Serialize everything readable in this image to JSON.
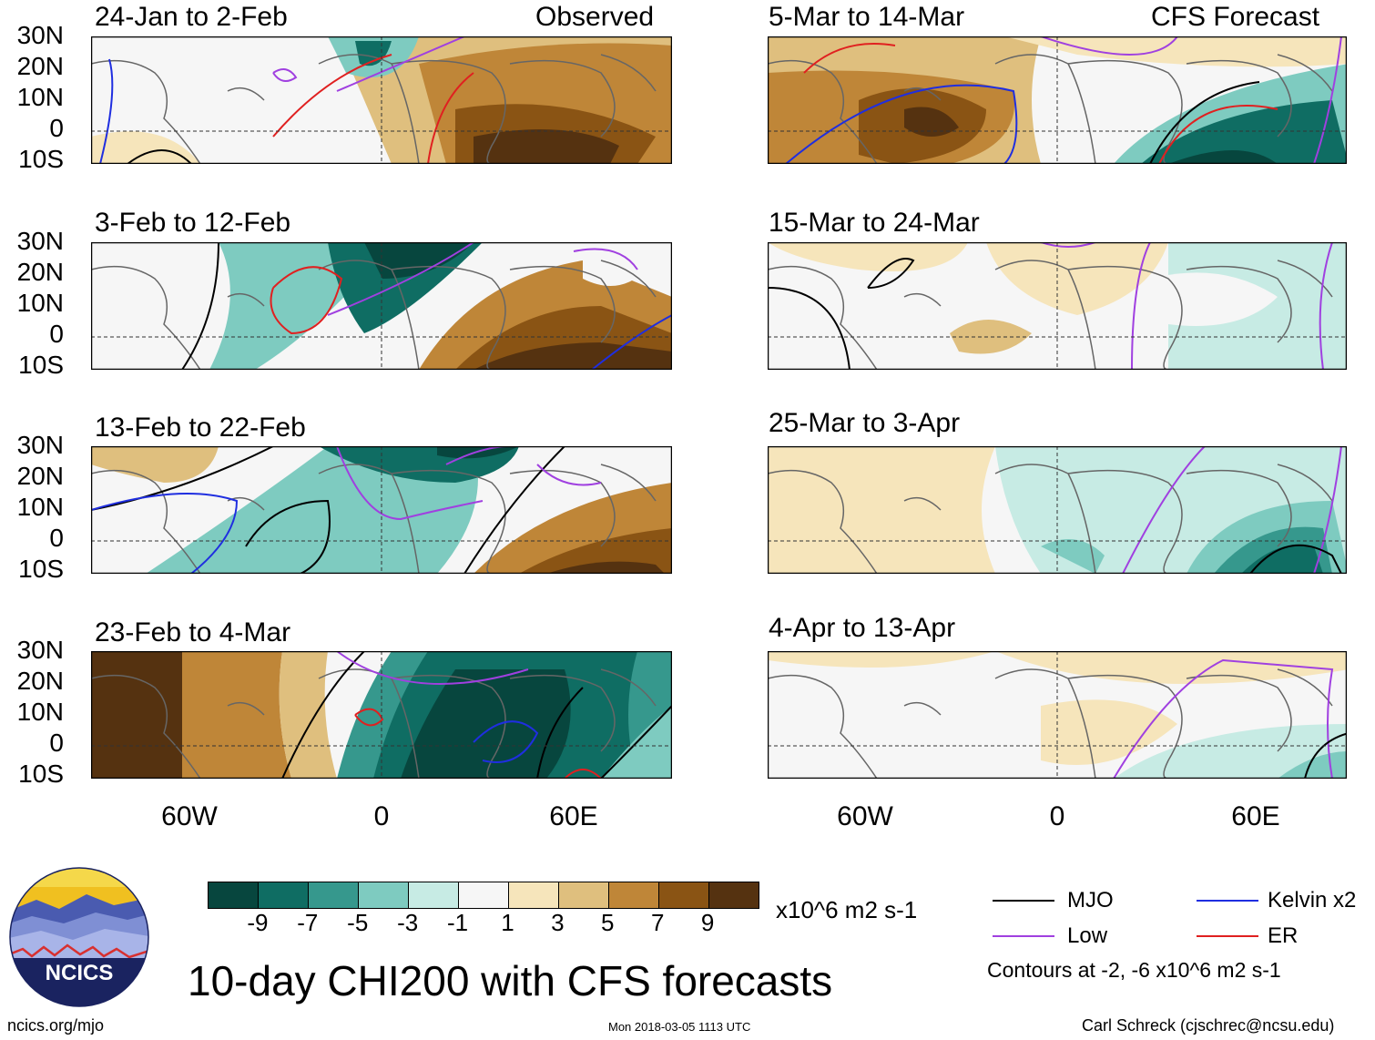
{
  "figure": {
    "title": "10-day CHI200 with CFS forecasts",
    "left_column_tag": "Observed",
    "right_column_tag": "CFS Forecast"
  },
  "panels": [
    {
      "period": "24-Jan to 2-Feb",
      "column": "observed"
    },
    {
      "period": "3-Feb to 12-Feb",
      "column": "observed"
    },
    {
      "period": "13-Feb to 22-Feb",
      "column": "observed"
    },
    {
      "period": "23-Feb to 4-Mar",
      "column": "observed"
    },
    {
      "period": "5-Mar to 14-Mar",
      "column": "forecast"
    },
    {
      "period": "15-Mar to 24-Mar",
      "column": "forecast"
    },
    {
      "period": "25-Mar to 3-Apr",
      "column": "forecast"
    },
    {
      "period": "4-Apr to 13-Apr",
      "column": "forecast"
    }
  ],
  "lat_labels": [
    "30N",
    "20N",
    "10N",
    "0",
    "10S"
  ],
  "lon_labels": [
    "60W",
    "0",
    "60E"
  ],
  "colorbar": {
    "ticks": [
      "-9",
      "-7",
      "-5",
      "-3",
      "-1",
      "1",
      "3",
      "5",
      "7",
      "9"
    ],
    "units": "x10^6 m2 s-1",
    "colors": [
      "#07463e",
      "#0f6d63",
      "#36988d",
      "#7ecbc0",
      "#c7ebe4",
      "#f6f6f6",
      "#f6e5bb",
      "#dfbf7e",
      "#bf8638",
      "#8a5414",
      "#553210"
    ]
  },
  "legend": {
    "mjo": {
      "label": "MJO",
      "color": "#000000"
    },
    "kelvin": {
      "label": "Kelvin x2",
      "color": "#1f2ee0"
    },
    "low": {
      "label": "Low",
      "color": "#a040e0"
    },
    "er": {
      "label": "ER",
      "color": "#e02020"
    },
    "contours_note": "Contours at -2, -6 x10^6 m2 s-1"
  },
  "logo": {
    "text": "NCICS"
  },
  "footer": {
    "website": "ncics.org/mjo",
    "timestamp": "Mon 2018-03-05 1113 UTC",
    "credit": "Carl Schreck (cjschrec@ncsu.edu)"
  }
}
